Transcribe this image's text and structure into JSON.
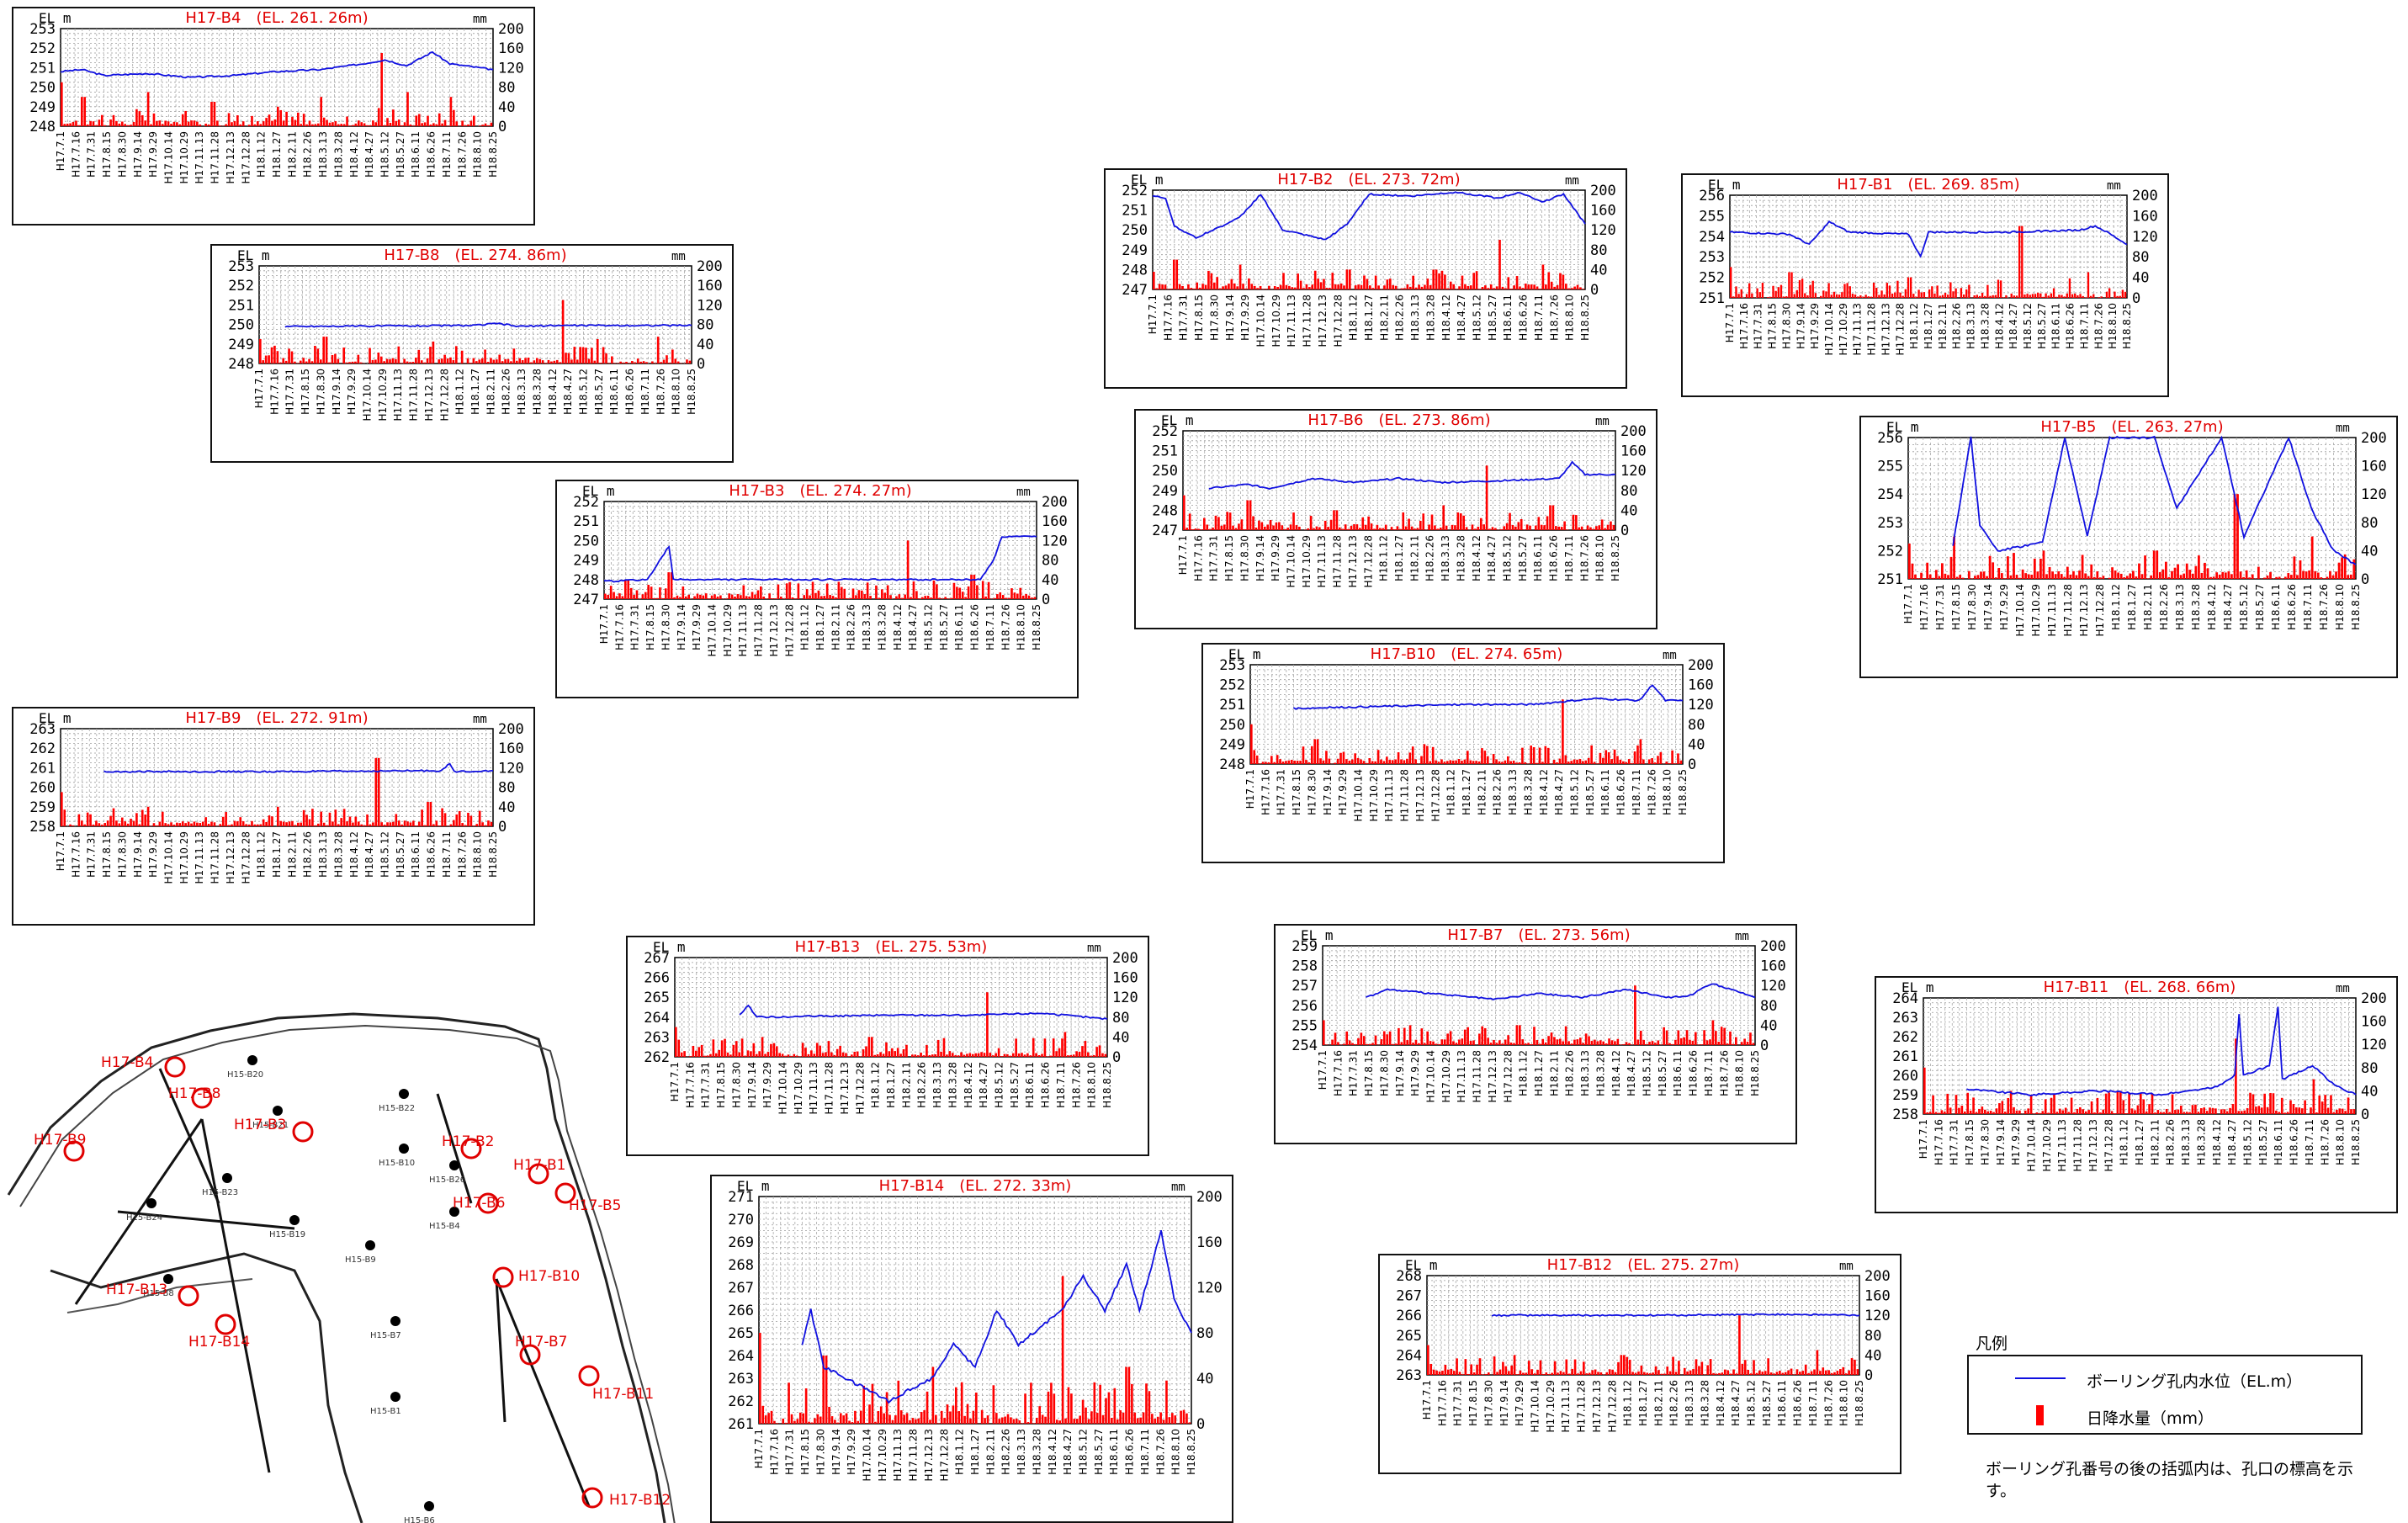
{
  "common": {
    "el_label": "EL m",
    "mm_label": "mm",
    "rain_ticks": [
      "0",
      "40",
      "80",
      "120",
      "160",
      "200"
    ],
    "dates": [
      "H17.7.1",
      "H17.7.16",
      "H17.7.31",
      "H17.8.15",
      "H17.8.30",
      "H17.9.14",
      "H17.9.29",
      "H17.10.14",
      "H17.10.29",
      "H17.11.13",
      "H17.11.28",
      "H17.12.13",
      "H17.12.28",
      "H18.1.12",
      "H18.1.27",
      "H18.2.11",
      "H18.2.26",
      "H18.3.13",
      "H18.3.28",
      "H18.4.12",
      "H18.4.27",
      "H18.5.12",
      "H18.5.27",
      "H18.6.11",
      "H18.6.26",
      "H18.7.11",
      "H18.7.26",
      "H18.8.10",
      "H18.8.25"
    ]
  },
  "chart_data": [
    {
      "type": "line",
      "id": "B4",
      "title": "H17-B4　(EL. 261. 26m)",
      "ylim": [
        248,
        253
      ],
      "rain_ylim": [
        0,
        200
      ],
      "level": [
        [
          0,
          250.8
        ],
        [
          0.05,
          250.9
        ],
        [
          0.1,
          250.6
        ],
        [
          0.2,
          250.7
        ],
        [
          0.3,
          250.5
        ],
        [
          0.4,
          250.6
        ],
        [
          0.5,
          250.8
        ],
        [
          0.6,
          250.9
        ],
        [
          0.7,
          251.2
        ],
        [
          0.75,
          251.4
        ],
        [
          0.8,
          251.1
        ],
        [
          0.86,
          251.8
        ],
        [
          0.9,
          251.2
        ],
        [
          1,
          250.9
        ]
      ],
      "rain_peaks": [
        [
          0.0,
          90
        ],
        [
          0.05,
          60
        ],
        [
          0.2,
          70
        ],
        [
          0.35,
          50
        ],
        [
          0.5,
          40
        ],
        [
          0.6,
          60
        ],
        [
          0.74,
          150
        ],
        [
          0.8,
          70
        ],
        [
          0.9,
          60
        ]
      ]
    },
    {
      "type": "line",
      "id": "B8",
      "title": "H17-B8　(EL. 274. 86m)",
      "ylim": [
        248,
        253
      ],
      "rain_ylim": [
        0,
        200
      ],
      "level": [
        [
          0.06,
          249.9
        ],
        [
          0.5,
          249.95
        ],
        [
          0.55,
          250.05
        ],
        [
          0.6,
          249.9
        ],
        [
          0.68,
          249.95
        ],
        [
          1,
          249.95
        ]
      ],
      "rain_peaks": [
        [
          0.0,
          50
        ],
        [
          0.15,
          55
        ],
        [
          0.4,
          45
        ],
        [
          0.7,
          130
        ],
        [
          0.78,
          50
        ],
        [
          0.92,
          55
        ]
      ]
    },
    {
      "type": "line",
      "id": "B3",
      "title": "H17-B3　(EL. 274. 27m)",
      "ylim": [
        247,
        252
      ],
      "rain_ylim": [
        0,
        200
      ],
      "level": [
        [
          0.0,
          247.9
        ],
        [
          0.1,
          248.0
        ],
        [
          0.15,
          249.7
        ],
        [
          0.16,
          248.0
        ],
        [
          0.5,
          248.0
        ],
        [
          0.87,
          248.0
        ],
        [
          0.9,
          249.0
        ],
        [
          0.92,
          250.2
        ],
        [
          1,
          250.2
        ]
      ],
      "rain_peaks": [
        [
          0.05,
          40
        ],
        [
          0.15,
          55
        ],
        [
          0.4,
          30
        ],
        [
          0.7,
          120
        ],
        [
          0.85,
          50
        ]
      ]
    },
    {
      "type": "line",
      "id": "B9",
      "title": "H17-B9　(EL. 272. 91m)",
      "ylim": [
        258,
        263
      ],
      "rain_ylim": [
        0,
        200
      ],
      "level": [
        [
          0.1,
          260.8
        ],
        [
          0.5,
          260.8
        ],
        [
          0.88,
          260.85
        ],
        [
          0.9,
          261.2
        ],
        [
          0.91,
          260.8
        ],
        [
          1,
          260.85
        ]
      ],
      "rain_peaks": [
        [
          0.0,
          70
        ],
        [
          0.2,
          40
        ],
        [
          0.5,
          40
        ],
        [
          0.73,
          140
        ],
        [
          0.85,
          50
        ]
      ]
    },
    {
      "type": "line",
      "id": "B2",
      "title": "H17-B2　(EL. 273. 72m)",
      "ylim": [
        247,
        252
      ],
      "rain_ylim": [
        0,
        200
      ],
      "level": [
        [
          0.0,
          251.7
        ],
        [
          0.03,
          251.6
        ],
        [
          0.05,
          250.2
        ],
        [
          0.1,
          249.6
        ],
        [
          0.2,
          250.6
        ],
        [
          0.25,
          251.8
        ],
        [
          0.3,
          250.0
        ],
        [
          0.4,
          249.5
        ],
        [
          0.45,
          250.3
        ],
        [
          0.5,
          251.8
        ],
        [
          0.6,
          251.7
        ],
        [
          0.7,
          251.9
        ],
        [
          0.8,
          251.6
        ],
        [
          0.85,
          251.9
        ],
        [
          0.9,
          251.4
        ],
        [
          0.95,
          251.8
        ],
        [
          1,
          250.3
        ]
      ],
      "rain_peaks": [
        [
          0.05,
          60
        ],
        [
          0.2,
          50
        ],
        [
          0.45,
          40
        ],
        [
          0.65,
          40
        ],
        [
          0.8,
          100
        ],
        [
          0.9,
          50
        ]
      ]
    },
    {
      "type": "line",
      "id": "B1",
      "title": "H17-B1　(EL. 269. 85m)",
      "ylim": [
        251,
        256
      ],
      "rain_ylim": [
        0,
        200
      ],
      "level": [
        [
          0.0,
          254.2
        ],
        [
          0.15,
          254.1
        ],
        [
          0.2,
          253.6
        ],
        [
          0.25,
          254.7
        ],
        [
          0.3,
          254.2
        ],
        [
          0.45,
          254.1
        ],
        [
          0.48,
          253.0
        ],
        [
          0.5,
          254.2
        ],
        [
          0.7,
          254.2
        ],
        [
          0.88,
          254.3
        ],
        [
          0.92,
          254.5
        ],
        [
          0.95,
          254.2
        ],
        [
          1,
          253.6
        ]
      ],
      "rain_peaks": [
        [
          0.0,
          60
        ],
        [
          0.15,
          50
        ],
        [
          0.45,
          40
        ],
        [
          0.73,
          140
        ],
        [
          0.9,
          50
        ]
      ]
    },
    {
      "type": "line",
      "id": "B6",
      "title": "H17-B6　(EL. 273. 86m)",
      "ylim": [
        247,
        252
      ],
      "rain_ylim": [
        0,
        200
      ],
      "level": [
        [
          0.06,
          249.1
        ],
        [
          0.15,
          249.3
        ],
        [
          0.2,
          249.1
        ],
        [
          0.3,
          249.6
        ],
        [
          0.4,
          249.4
        ],
        [
          0.5,
          249.6
        ],
        [
          0.6,
          249.4
        ],
        [
          0.75,
          249.5
        ],
        [
          0.87,
          249.6
        ],
        [
          0.9,
          250.4
        ],
        [
          0.93,
          249.8
        ],
        [
          1,
          249.8
        ]
      ],
      "rain_peaks": [
        [
          0.0,
          70
        ],
        [
          0.15,
          60
        ],
        [
          0.35,
          40
        ],
        [
          0.6,
          50
        ],
        [
          0.7,
          130
        ],
        [
          0.85,
          50
        ]
      ]
    },
    {
      "type": "line",
      "id": "B5",
      "title": "H17-B5　(EL. 263. 27m)",
      "ylim": [
        251,
        256
      ],
      "rain_ylim": [
        0,
        200
      ],
      "level": [
        [
          0.1,
          252.2
        ],
        [
          0.14,
          256.0
        ],
        [
          0.16,
          252.9
        ],
        [
          0.2,
          252.0
        ],
        [
          0.3,
          252.3
        ],
        [
          0.35,
          256.0
        ],
        [
          0.4,
          252.5
        ],
        [
          0.45,
          256.0
        ],
        [
          0.55,
          256.0
        ],
        [
          0.6,
          253.5
        ],
        [
          0.7,
          256.0
        ],
        [
          0.75,
          252.5
        ],
        [
          0.85,
          256.0
        ],
        [
          0.9,
          253.5
        ],
        [
          0.95,
          252.0
        ],
        [
          1,
          251.5
        ]
      ],
      "rain_peaks": [
        [
          0.0,
          50
        ],
        [
          0.1,
          60
        ],
        [
          0.3,
          40
        ],
        [
          0.55,
          40
        ],
        [
          0.73,
          120
        ],
        [
          0.9,
          60
        ]
      ]
    },
    {
      "type": "line",
      "id": "B10",
      "title": "H17-B10　(EL. 274. 65m)",
      "ylim": [
        248,
        253
      ],
      "rain_ylim": [
        0,
        200
      ],
      "level": [
        [
          0.1,
          250.8
        ],
        [
          0.3,
          250.9
        ],
        [
          0.5,
          251.0
        ],
        [
          0.65,
          251.0
        ],
        [
          0.7,
          251.1
        ],
        [
          0.8,
          251.3
        ],
        [
          0.9,
          251.2
        ],
        [
          0.93,
          252.0
        ],
        [
          0.96,
          251.2
        ],
        [
          1,
          251.2
        ]
      ],
      "rain_peaks": [
        [
          0.0,
          80
        ],
        [
          0.15,
          50
        ],
        [
          0.4,
          40
        ],
        [
          0.72,
          130
        ],
        [
          0.9,
          50
        ]
      ]
    },
    {
      "type": "line",
      "id": "B13",
      "title": "H17-B13　(EL. 275. 53m)",
      "ylim": [
        262,
        267
      ],
      "rain_ylim": [
        0,
        200
      ],
      "level": [
        [
          0.15,
          264.1
        ],
        [
          0.17,
          264.6
        ],
        [
          0.19,
          264.0
        ],
        [
          0.5,
          264.1
        ],
        [
          0.7,
          264.1
        ],
        [
          0.85,
          264.2
        ],
        [
          1,
          263.9
        ]
      ],
      "rain_peaks": [
        [
          0.0,
          60
        ],
        [
          0.2,
          40
        ],
        [
          0.45,
          40
        ],
        [
          0.72,
          130
        ],
        [
          0.9,
          50
        ]
      ]
    },
    {
      "type": "line",
      "id": "B7",
      "title": "H17-B7　(EL. 273. 56m)",
      "ylim": [
        254,
        259
      ],
      "rain_ylim": [
        0,
        200
      ],
      "level": [
        [
          0.1,
          256.4
        ],
        [
          0.15,
          256.8
        ],
        [
          0.25,
          256.6
        ],
        [
          0.4,
          256.3
        ],
        [
          0.5,
          256.6
        ],
        [
          0.6,
          256.4
        ],
        [
          0.7,
          256.8
        ],
        [
          0.8,
          256.4
        ],
        [
          0.85,
          256.5
        ],
        [
          0.9,
          257.1
        ],
        [
          1,
          256.4
        ]
      ],
      "rain_peaks": [
        [
          0.0,
          50
        ],
        [
          0.2,
          40
        ],
        [
          0.45,
          40
        ],
        [
          0.72,
          120
        ],
        [
          0.9,
          50
        ]
      ]
    },
    {
      "type": "line",
      "id": "B11",
      "title": "H17-B11　(EL. 268. 66m)",
      "ylim": [
        258,
        264
      ],
      "rain_ylim": [
        0,
        200
      ],
      "level": [
        [
          0.1,
          259.3
        ],
        [
          0.25,
          259.0
        ],
        [
          0.4,
          259.2
        ],
        [
          0.55,
          259.0
        ],
        [
          0.68,
          259.4
        ],
        [
          0.72,
          260.0
        ],
        [
          0.73,
          263.2
        ],
        [
          0.74,
          260.0
        ],
        [
          0.8,
          260.5
        ],
        [
          0.82,
          263.5
        ],
        [
          0.83,
          259.8
        ],
        [
          0.9,
          260.5
        ],
        [
          0.95,
          259.5
        ],
        [
          1,
          259.0
        ]
      ],
      "rain_peaks": [
        [
          0.0,
          80
        ],
        [
          0.2,
          40
        ],
        [
          0.45,
          40
        ],
        [
          0.72,
          130
        ],
        [
          0.9,
          60
        ]
      ]
    },
    {
      "type": "line",
      "id": "B14",
      "title": "H17-B14　(EL. 272. 33m)",
      "ylim": [
        261,
        271
      ],
      "rain_ylim": [
        0,
        200
      ],
      "level": [
        [
          0.1,
          264.5
        ],
        [
          0.12,
          266.0
        ],
        [
          0.15,
          263.5
        ],
        [
          0.2,
          263.0
        ],
        [
          0.3,
          262.0
        ],
        [
          0.4,
          263.0
        ],
        [
          0.45,
          264.5
        ],
        [
          0.5,
          263.5
        ],
        [
          0.55,
          266.0
        ],
        [
          0.6,
          264.5
        ],
        [
          0.7,
          266.0
        ],
        [
          0.75,
          267.5
        ],
        [
          0.8,
          266.0
        ],
        [
          0.85,
          268.0
        ],
        [
          0.88,
          266.0
        ],
        [
          0.93,
          269.5
        ],
        [
          0.96,
          266.5
        ],
        [
          1,
          265.0
        ]
      ],
      "rain_peaks": [
        [
          0.0,
          80
        ],
        [
          0.15,
          60
        ],
        [
          0.4,
          50
        ],
        [
          0.7,
          130
        ],
        [
          0.85,
          50
        ]
      ]
    },
    {
      "type": "line",
      "id": "B12",
      "title": "H17-B12　(EL. 275. 27m)",
      "ylim": [
        263,
        268
      ],
      "rain_ylim": [
        0,
        200
      ],
      "level": [
        [
          0.15,
          266.0
        ],
        [
          0.5,
          266.0
        ],
        [
          0.85,
          266.05
        ],
        [
          1,
          266.0
        ]
      ],
      "rain_peaks": [
        [
          0.0,
          60
        ],
        [
          0.2,
          40
        ],
        [
          0.45,
          40
        ],
        [
          0.72,
          120
        ],
        [
          0.9,
          50
        ]
      ]
    }
  ],
  "map": {
    "boreholes": [
      "H17-B4",
      "H17-B8",
      "H17-B9",
      "H17-B3",
      "H17-B2",
      "H17-B1",
      "H17-B6",
      "H17-B5",
      "H17-B10",
      "H17-B13",
      "H17-B14",
      "H17-B7",
      "H17-B11",
      "H17-B12"
    ],
    "old_holes": [
      "H15-B20",
      "H15-B21",
      "H15-B22",
      "H15-B10",
      "H15-B26",
      "H15-B23",
      "H15-B24",
      "H15-B19",
      "H15-B9",
      "H15-B4",
      "H15-B8",
      "H15-B7",
      "H15-B1",
      "H15-B6"
    ]
  },
  "legend": {
    "title": "凡例",
    "line_label": "ボーリング孔内水位（EL.m）",
    "bar_label": "日降水量（mm）",
    "note": "ボーリング孔番号の後の括弧内は、孔口の標高を示す。"
  },
  "colors": {
    "level": "#1010e0",
    "rain": "#ff0000",
    "title": "#e00000"
  }
}
